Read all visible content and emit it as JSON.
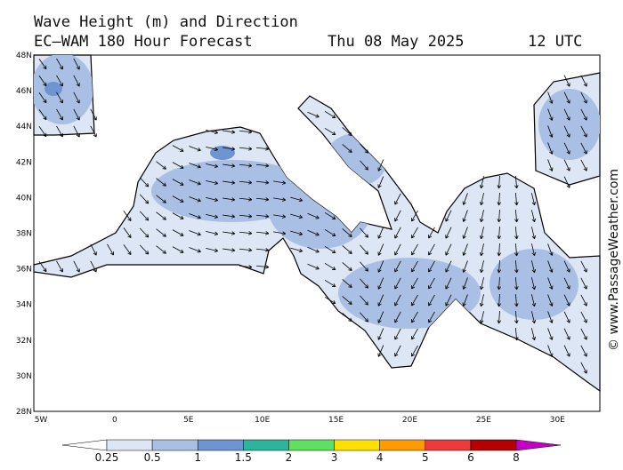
{
  "header": {
    "title": "Wave Height (m) and Direction",
    "model": "EC–WAM 180 Hour Forecast",
    "date": "Thu 08 May 2025",
    "time": "12 UTC"
  },
  "map": {
    "lat_labels": [
      "48N",
      "46N",
      "44N",
      "42N",
      "40N",
      "38N",
      "36N",
      "34N",
      "32N",
      "30N",
      "28N"
    ],
    "lon_labels": [
      "5W",
      "0",
      "5E",
      "10E",
      "15E",
      "20E",
      "25E",
      "30E"
    ]
  },
  "colorbar": {
    "bounds": [
      0.25,
      0.5,
      1,
      1.5,
      2,
      3,
      4,
      5,
      6,
      8
    ],
    "colors": [
      "#ffffff",
      "#dde6f4",
      "#a9c0e4",
      "#6f94d2",
      "#2cb49c",
      "#60e060",
      "#ffe000",
      "#ff9a00",
      "#ee3a3a",
      "#b40000",
      "#c400c4"
    ]
  },
  "watermark": "© www.PassageWeather.com"
}
